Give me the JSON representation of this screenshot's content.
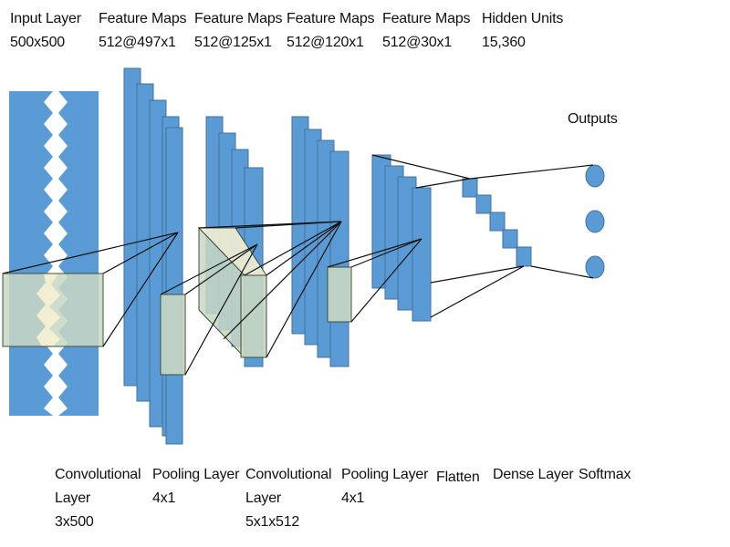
{
  "top_labels": [
    {
      "title": "Input Layer",
      "value": "500x500"
    },
    {
      "title": "Feature Maps",
      "value": "512@497x1"
    },
    {
      "title": "Feature Maps",
      "value": "512@125x1"
    },
    {
      "title": "Feature Maps",
      "value": "512@120x1"
    },
    {
      "title": "Feature Maps",
      "value": "512@30x1"
    },
    {
      "title": "Hidden Units",
      "value": "15,360"
    }
  ],
  "outputs_label": "Outputs",
  "bottom_labels": [
    {
      "lines": [
        "Convolutional",
        "Layer",
        "3x500"
      ]
    },
    {
      "lines": [
        "Pooling Layer",
        "4x1"
      ]
    },
    {
      "lines": [
        "Convolutional",
        "Layer",
        "5x1x512"
      ]
    },
    {
      "lines": [
        "Pooling Layer",
        "4x1"
      ]
    },
    {
      "lines": [
        "Flatten"
      ]
    },
    {
      "lines": [
        "Dense Layer"
      ]
    },
    {
      "lines": [
        "Softmax"
      ]
    }
  ],
  "colors": {
    "map_fill": "#5b9bd5",
    "map_stroke": "#41719c",
    "kernel_fill": "#c9d7c3",
    "kernel_light": "#f4efd3",
    "line": "#111111"
  }
}
